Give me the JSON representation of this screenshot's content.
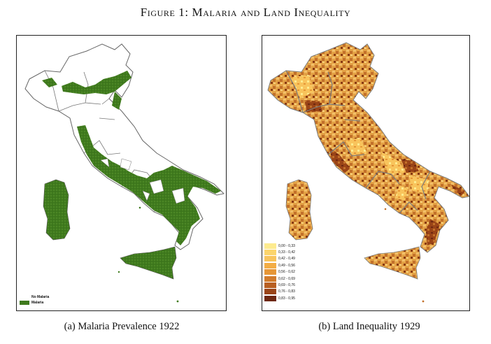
{
  "figure": {
    "title": "Figure 1: Malaria and Land Inequality"
  },
  "panel_a": {
    "caption": "(a) Malaria Prevalence 1922",
    "legend": [
      {
        "label": "No Malaria",
        "color": "#ffffff"
      },
      {
        "label": "Malaria",
        "color": "#3f7a1d"
      }
    ]
  },
  "panel_b": {
    "caption": "(b) Land Inequality 1929",
    "legend": [
      {
        "label": "0,00 - 0,33",
        "color": "#fdeb8f"
      },
      {
        "label": "0,33 - 0,42",
        "color": "#fbd46b"
      },
      {
        "label": "0,42 - 0,49",
        "color": "#f8c45c"
      },
      {
        "label": "0,49 - 0,56",
        "color": "#f3ad45"
      },
      {
        "label": "0,56 - 0,62",
        "color": "#e69637"
      },
      {
        "label": "0,62 - 0,69",
        "color": "#d17b2c"
      },
      {
        "label": "0,69 - 0,76",
        "color": "#b85f21"
      },
      {
        "label": "0,76 - 0,83",
        "color": "#9a4417"
      },
      {
        "label": "0,83 - 0,95",
        "color": "#6e2810"
      }
    ]
  }
}
